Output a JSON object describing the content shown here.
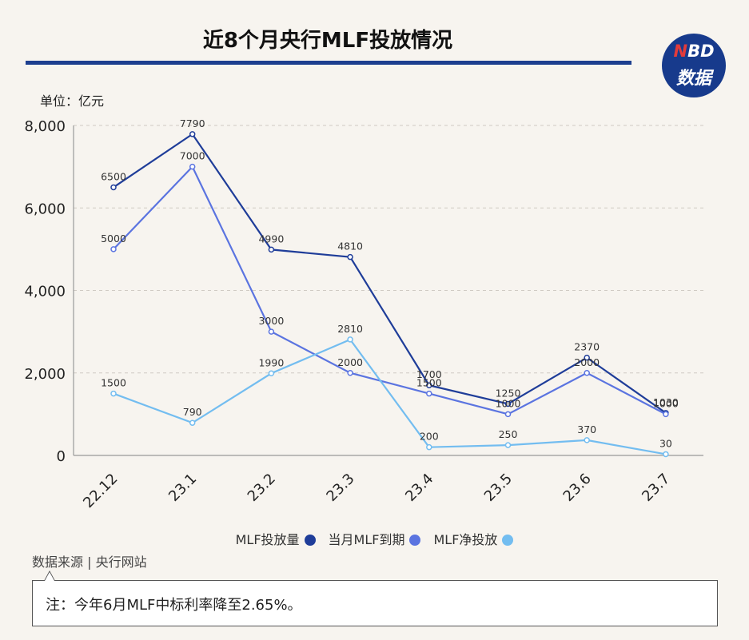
{
  "header": {
    "title": "近8个月央行MLF投放情况",
    "logo_top": "NBD",
    "logo_bottom": "数据"
  },
  "chart_data": {
    "type": "line",
    "unit_label": "单位：亿元",
    "categories": [
      "22.12",
      "23.1",
      "23.2",
      "23.3",
      "23.4",
      "23.5",
      "23.6",
      "23.7"
    ],
    "y_ticks": [
      "0",
      "2,000",
      "4,000",
      "6,000",
      "8,000"
    ],
    "ylim": [
      0,
      8000
    ],
    "grid": true,
    "legend_position": "bottom",
    "series": [
      {
        "name": "MLF投放量",
        "color": "#1f3d99",
        "values": [
          6500,
          7790,
          4990,
          4810,
          1700,
          1250,
          2370,
          1030
        ]
      },
      {
        "name": "当月MLF到期",
        "color": "#5b74e0",
        "values": [
          5000,
          7000,
          3000,
          2000,
          1500,
          1000,
          2000,
          1000
        ]
      },
      {
        "name": "MLF净投放",
        "color": "#73bdf0",
        "values": [
          1500,
          790,
          1990,
          2810,
          200,
          250,
          370,
          30
        ]
      }
    ]
  },
  "footer": {
    "source": "数据来源 | 央行网站",
    "note": "注：今年6月MLF中标利率降至2.65%。"
  }
}
